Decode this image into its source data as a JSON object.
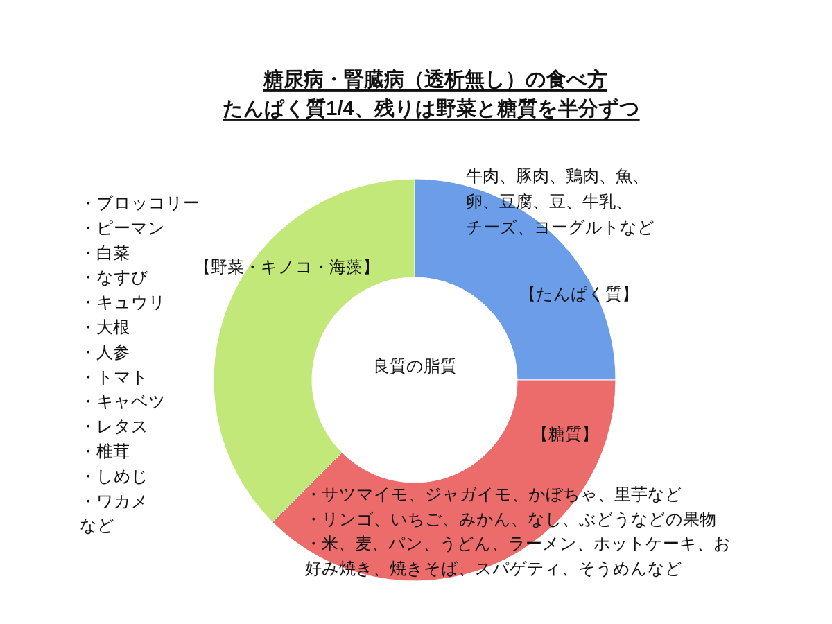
{
  "chart_data": {
    "type": "donut",
    "title": "糖尿病・腎臓病（透析無し）の食べ方",
    "subtitle": "たんぱく質1/4、残りは野菜と糖質を半分ずつ",
    "categories": [
      "【たんぱく質】",
      "【糖質】",
      "【野菜・キノコ・海藻】"
    ],
    "values": [
      25,
      37.5,
      37.5
    ],
    "colors": [
      "#6b9de8",
      "#ec6b6b",
      "#c2e87a"
    ],
    "annotations": [
      "良質の脂質",
      "牛肉、豚肉、鶏肉、魚、卵、豆腐、豆、牛乳、チーズ、ヨーグルトなど",
      "・サツマイモ、ジャガイモ、かぼちゃ、里芋など",
      "・リンゴ、いちご、みかん、なし、ぶどうなどの果物",
      "・米、麦、パン、うどん、ラーメン、ホットケーキ、お好み焼き、焼きそば、スパゲティ、そうめんなど",
      "・ブロッコリー",
      "・ピーマン",
      "・白菜",
      "・なすび",
      "・キュウリ",
      "・大根",
      "・人参",
      "・トマト",
      "・キャベツ",
      "・レタス",
      "・椎茸",
      "・しめじ",
      "・ワカメ",
      "など"
    ]
  }
}
